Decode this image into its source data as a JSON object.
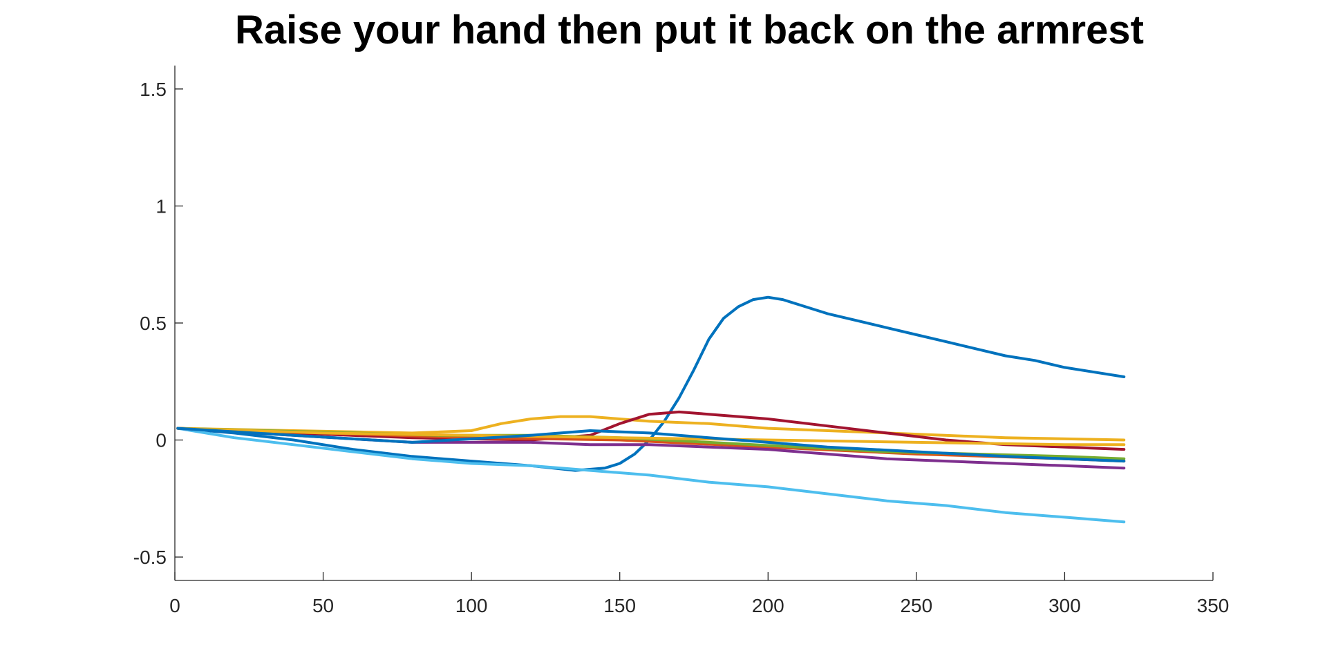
{
  "chart_data": {
    "type": "line",
    "title": "Raise your hand then put it back on the armrest",
    "xlabel": "",
    "ylabel": "",
    "xlim": [
      0,
      350
    ],
    "ylim": [
      -0.6,
      1.6
    ],
    "xticks": [
      0,
      50,
      100,
      150,
      200,
      250,
      300,
      350
    ],
    "xtick_labels": [
      "0",
      "50",
      "100",
      "150",
      "200",
      "250",
      "300",
      "350"
    ],
    "yticks": [
      -0.5,
      0,
      0.5,
      1,
      1.5
    ],
    "ytick_labels": [
      "-0.5",
      "0",
      "0.5",
      "1",
      "1.5"
    ],
    "grid": false,
    "legend": "none",
    "series": [
      {
        "color": "#0072BD",
        "x": [
          1,
          20,
          40,
          60,
          80,
          100,
          120,
          135,
          145,
          150,
          155,
          160,
          165,
          170,
          175,
          180,
          185,
          190,
          195,
          200,
          205,
          210,
          220,
          230,
          240,
          250,
          260,
          270,
          280,
          290,
          300,
          310,
          320
        ],
        "y": [
          0.05,
          0.03,
          0.0,
          -0.04,
          -0.07,
          -0.09,
          -0.11,
          -0.13,
          -0.12,
          -0.1,
          -0.06,
          0.0,
          0.08,
          0.18,
          0.3,
          0.43,
          0.52,
          0.57,
          0.6,
          0.61,
          0.6,
          0.58,
          0.54,
          0.51,
          0.48,
          0.45,
          0.42,
          0.39,
          0.36,
          0.34,
          0.31,
          0.29,
          0.27
        ]
      },
      {
        "color": "#4DBEEE",
        "x": [
          1,
          20,
          40,
          60,
          80,
          100,
          120,
          140,
          160,
          180,
          200,
          220,
          240,
          260,
          280,
          300,
          320
        ],
        "y": [
          0.05,
          0.01,
          -0.02,
          -0.05,
          -0.08,
          -0.1,
          -0.11,
          -0.13,
          -0.15,
          -0.18,
          -0.2,
          -0.23,
          -0.26,
          -0.28,
          -0.31,
          -0.33,
          -0.35
        ]
      },
      {
        "color": "#EDB120",
        "x": [
          1,
          40,
          80,
          100,
          110,
          120,
          130,
          140,
          150,
          160,
          180,
          200,
          240,
          280,
          320
        ],
        "y": [
          0.05,
          0.04,
          0.03,
          0.04,
          0.07,
          0.09,
          0.1,
          0.1,
          0.09,
          0.08,
          0.07,
          0.05,
          0.03,
          0.01,
          0.0
        ]
      },
      {
        "color": "#A2142F",
        "x": [
          1,
          40,
          80,
          120,
          140,
          150,
          160,
          170,
          180,
          200,
          220,
          240,
          260,
          280,
          300,
          320
        ],
        "y": [
          0.05,
          0.03,
          0.01,
          0.0,
          0.02,
          0.07,
          0.11,
          0.12,
          0.11,
          0.09,
          0.06,
          0.03,
          0.0,
          -0.02,
          -0.03,
          -0.04
        ]
      },
      {
        "color": "#D95319",
        "x": [
          1,
          50,
          100,
          150,
          200,
          250,
          300,
          320
        ],
        "y": [
          0.05,
          0.03,
          0.01,
          0.0,
          -0.03,
          -0.06,
          -0.08,
          -0.09
        ]
      },
      {
        "color": "#77AC30",
        "x": [
          1,
          30,
          60,
          90,
          120,
          150,
          180,
          210,
          240,
          270,
          300,
          320
        ],
        "y": [
          0.05,
          0.04,
          0.03,
          0.02,
          0.02,
          0.01,
          -0.01,
          -0.03,
          -0.05,
          -0.06,
          -0.07,
          -0.08
        ]
      },
      {
        "color": "#7E2F8E",
        "x": [
          1,
          40,
          80,
          120,
          140,
          160,
          180,
          200,
          220,
          240,
          260,
          280,
          300,
          320
        ],
        "y": [
          0.05,
          0.02,
          -0.01,
          -0.01,
          -0.02,
          -0.02,
          -0.03,
          -0.04,
          -0.06,
          -0.08,
          -0.09,
          -0.1,
          -0.11,
          -0.12
        ]
      },
      {
        "color": "#EDB120",
        "x": [
          1,
          50,
          100,
          150,
          200,
          250,
          300,
          320
        ],
        "y": [
          0.05,
          0.03,
          0.02,
          0.01,
          0.0,
          -0.01,
          -0.02,
          -0.02
        ]
      },
      {
        "color": "#0072BD",
        "x": [
          1,
          40,
          80,
          120,
          140,
          160,
          180,
          200,
          220,
          250,
          280,
          300,
          320
        ],
        "y": [
          0.05,
          0.02,
          -0.01,
          0.02,
          0.04,
          0.03,
          0.01,
          -0.01,
          -0.03,
          -0.05,
          -0.07,
          -0.08,
          -0.09
        ]
      }
    ]
  }
}
